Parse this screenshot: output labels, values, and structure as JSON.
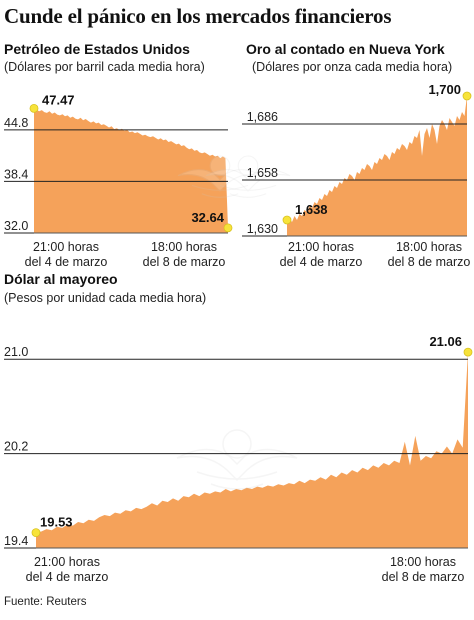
{
  "headline": "Cunde el pánico en los mercados financieros",
  "source": "Fuente: Reuters",
  "colors": {
    "area": "#f5a25a",
    "marker": "#f7e33a",
    "grid": "#222222",
    "axis": "#555555"
  },
  "watermark_icon": "eagle-emblem-watermark-icon",
  "chart_data": [
    {
      "type": "area",
      "title": "Petróleo de Estados Unidos",
      "subtitle": "(Dólares por barril cada media hora)",
      "yticks": [
        32.0,
        38.4,
        44.8
      ],
      "ylim": [
        32.0,
        49.5
      ],
      "x_tick_labels": [
        [
          "21:00 horas",
          "del 4 de marzo"
        ],
        [
          "18:00 horas",
          "del 8 de marzo"
        ]
      ],
      "start": {
        "value": 47.47,
        "label": "47.47"
      },
      "end": {
        "value": 32.64,
        "label": "32.64"
      },
      "values": [
        47.47,
        47.3,
        47.1,
        47.25,
        47.0,
        46.9,
        47.1,
        46.8,
        46.95,
        46.7,
        46.6,
        46.75,
        46.5,
        46.6,
        46.3,
        46.45,
        46.2,
        46.1,
        46.3,
        46.0,
        46.15,
        45.9,
        45.7,
        45.85,
        45.6,
        45.7,
        45.4,
        45.5,
        45.3,
        45.1,
        45.25,
        44.9,
        45.0,
        44.8,
        44.95,
        44.7,
        44.8,
        44.5,
        44.6,
        44.4,
        44.5,
        44.3,
        44.1,
        44.2,
        44.0,
        43.9,
        44.0,
        43.8,
        43.6,
        43.75,
        43.5,
        43.6,
        43.3,
        43.4,
        43.2,
        43.0,
        43.1,
        42.8,
        42.9,
        42.6,
        42.4,
        42.5,
        42.2,
        42.3,
        42.0,
        41.9,
        42.0,
        41.8,
        41.6,
        41.7,
        41.5,
        41.6,
        41.3,
        41.5,
        41.3,
        32.64
      ]
    },
    {
      "type": "area",
      "title": "Oro al contado en Nueva York",
      "subtitle": "(Dólares por onza cada media hora)",
      "yticks": [
        1630,
        1658,
        1686
      ],
      "ylim": [
        1630,
        1702
      ],
      "x_tick_labels": [
        [
          "21:00 horas",
          "del 4 de marzo"
        ],
        [
          "18:00 horas",
          "del 8 de marzo"
        ]
      ],
      "start": {
        "value": 1638,
        "label": "1,638"
      },
      "end": {
        "value": 1700,
        "label": "1,700"
      },
      "values": [
        1638,
        1639,
        1637,
        1640,
        1638,
        1641,
        1640,
        1643,
        1642,
        1645,
        1644,
        1647,
        1646,
        1649,
        1648,
        1651,
        1650,
        1653,
        1652,
        1655,
        1654,
        1657,
        1656,
        1659,
        1658,
        1661,
        1660,
        1658,
        1662,
        1661,
        1664,
        1663,
        1666,
        1665,
        1663,
        1667,
        1666,
        1669,
        1668,
        1671,
        1670,
        1668,
        1672,
        1671,
        1674,
        1673,
        1676,
        1675,
        1673,
        1677,
        1676,
        1680,
        1679,
        1683,
        1670,
        1681,
        1684,
        1679,
        1686,
        1683,
        1676,
        1685,
        1688,
        1686,
        1683,
        1689,
        1687,
        1685,
        1690,
        1688,
        1692,
        1690,
        1700
      ]
    },
    {
      "type": "area",
      "title": "Dólar al mayoreo",
      "subtitle": "(Pesos por unidad cada media hora)",
      "yticks": [
        19.4,
        20.2,
        21.0
      ],
      "ylim": [
        19.4,
        21.4
      ],
      "x_tick_labels": [
        [
          "21:00 horas",
          "del 4 de marzo"
        ],
        [
          "18:00 horas",
          "del 8 de marzo"
        ]
      ],
      "start": {
        "value": 19.53,
        "label": "19.53"
      },
      "end": {
        "value": 21.06,
        "label": "21.06"
      },
      "values": [
        19.53,
        19.54,
        19.56,
        19.55,
        19.58,
        19.57,
        19.6,
        19.59,
        19.62,
        19.61,
        19.64,
        19.63,
        19.66,
        19.68,
        19.67,
        19.7,
        19.69,
        19.72,
        19.71,
        19.74,
        19.73,
        19.75,
        19.78,
        19.76,
        19.8,
        19.79,
        19.82,
        19.8,
        19.84,
        19.83,
        19.86,
        19.84,
        19.87,
        19.86,
        19.88,
        19.87,
        19.9,
        19.88,
        19.9,
        19.89,
        19.91,
        19.9,
        19.92,
        19.91,
        19.93,
        19.92,
        19.94,
        19.93,
        19.95,
        19.94,
        19.97,
        19.95,
        19.98,
        19.97,
        20.0,
        19.98,
        20.02,
        20.0,
        20.04,
        20.02,
        20.06,
        20.04,
        20.08,
        20.06,
        20.1,
        20.08,
        20.12,
        20.1,
        20.14,
        20.12,
        20.3,
        20.1,
        20.35,
        20.14,
        20.18,
        20.16,
        20.22,
        20.2,
        20.26,
        20.2,
        20.32,
        20.25,
        21.06
      ]
    }
  ]
}
